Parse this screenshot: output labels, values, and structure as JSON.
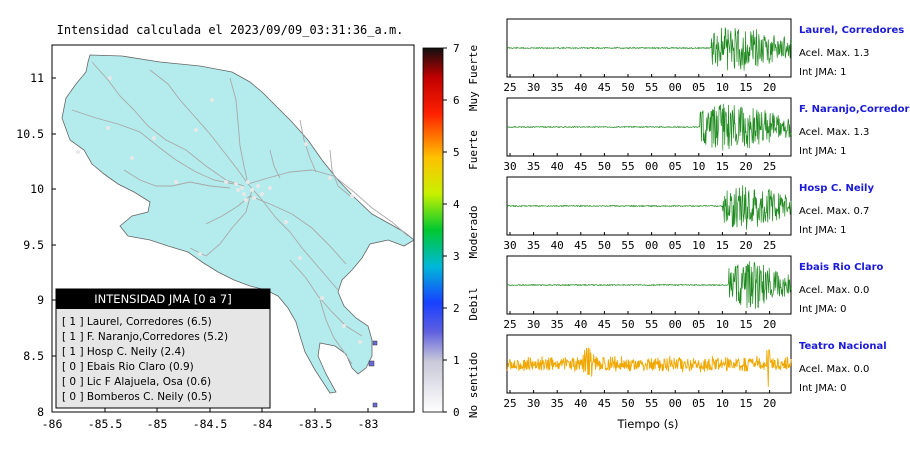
{
  "map": {
    "title": "Intensidad calculada el 2023/09/09_03:31:36_a.m.",
    "x_ticks": [
      "-86",
      "-85.5",
      "-85",
      "-84.5",
      "-84",
      "-83.5",
      "-83"
    ],
    "y_ticks": [
      "11",
      "10.5",
      "10",
      "9.5",
      "9",
      "8.5",
      "8"
    ],
    "colors": {
      "land": "#b4ecee",
      "ocean": "#ffffff",
      "roads": "#a8a8a8",
      "border": "#666666"
    }
  },
  "colorbar": {
    "ticks": [
      "0",
      "1",
      "2",
      "3",
      "4",
      "5",
      "6",
      "7"
    ],
    "categories": [
      "No sentido",
      "Debil",
      "Moderado",
      "Fuerte",
      "Muy Fuerte"
    ]
  },
  "legend": {
    "title": "INTENSIDAD JMA [0 a 7]",
    "items": [
      "[ 1 ] Laurel, Corredores (6.5)",
      "[ 1 ] F. Naranjo,Corredores (5.2)",
      "[ 1 ] Hosp C. Neily (2.4)",
      "[ 0 ] Ebais Rio Claro (0.9)",
      "[ 0 ] Lic F Alajuela, Osa (0.6)",
      "[ 0 ] Bomberos C. Neily (0.5)"
    ]
  },
  "x_axis_label": "Tiempo (s)",
  "chart_data": [
    {
      "type": "line",
      "title": "Laurel, Corredores",
      "x_ticks": [
        "25",
        "30",
        "35",
        "40",
        "45",
        "50",
        "55",
        "00",
        "05",
        "10",
        "15",
        "20"
      ],
      "stats": {
        "acel": "Acel. Max. 1.3",
        "int": "Int JMA: 1"
      },
      "series": [
        {
          "color": "#1e8a1e",
          "noise_level": 0.02,
          "onset_fraction": 0.72,
          "peak": 0.9
        }
      ]
    },
    {
      "type": "line",
      "title": "F. Naranjo,Corredores",
      "x_ticks": [
        "30",
        "35",
        "40",
        "45",
        "50",
        "55",
        "00",
        "05",
        "10",
        "15",
        "20",
        "25"
      ],
      "stats": {
        "acel": "Acel. Max. 1.3",
        "int": "Int JMA: 1"
      },
      "series": [
        {
          "color": "#1e8a1e",
          "noise_level": 0.02,
          "onset_fraction": 0.68,
          "peak": 0.9
        }
      ]
    },
    {
      "type": "line",
      "title": "Hosp C. Neily",
      "x_ticks": [
        "30",
        "35",
        "40",
        "45",
        "50",
        "55",
        "00",
        "05",
        "10",
        "15",
        "20",
        "25"
      ],
      "stats": {
        "acel": "Acel. Max. 0.7",
        "int": "Int JMA: 1"
      },
      "series": [
        {
          "color": "#1e8a1e",
          "noise_level": 0.02,
          "onset_fraction": 0.76,
          "peak": 0.9
        }
      ]
    },
    {
      "type": "line",
      "title": "Ebais Rio Claro",
      "x_ticks": [
        "25",
        "30",
        "35",
        "40",
        "45",
        "50",
        "55",
        "00",
        "05",
        "10",
        "15",
        "20"
      ],
      "stats": {
        "acel": "Acel. Max. 0.0",
        "int": "Int JMA: 0"
      },
      "series": [
        {
          "color": "#1e8a1e",
          "noise_level": 0.02,
          "onset_fraction": 0.78,
          "peak": 0.9
        }
      ]
    },
    {
      "type": "line",
      "title": "Teatro Nacional",
      "x_ticks": [
        "25",
        "30",
        "35",
        "40",
        "45",
        "50",
        "55",
        "00",
        "05",
        "10",
        "15",
        "20"
      ],
      "stats": {
        "acel": "Acel. Max. 0.0",
        "int": "Int JMA: 0"
      },
      "series": [
        {
          "color": "#f0a800",
          "noise_level": 0.25,
          "onset_fraction": null,
          "peak": 0.9
        }
      ]
    }
  ]
}
